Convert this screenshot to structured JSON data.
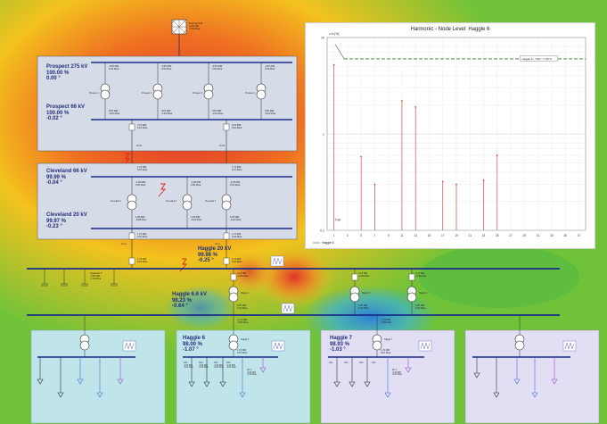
{
  "external_grid": {
    "name": "External Grid",
    "p": "-0.00 MW",
    "q": "-0.00 Mvar"
  },
  "prospect_275": {
    "name": "Prospect 275 kV",
    "v": "100.00 %",
    "angle": "0.00 °"
  },
  "prospect_66": {
    "name": "Prospect 66 kV",
    "v": "100.00 %",
    "angle": "-0.02 °"
  },
  "cleveland_66": {
    "name": "Cleveland 66 kV",
    "v": "99.99 %",
    "angle": "-0.04 °"
  },
  "cleveland_20": {
    "name": "Cleveland 20 kV",
    "v": "99.97 %",
    "angle": "-0.23 °"
  },
  "haggle_20": {
    "name": "Haggle 20 kV",
    "v": "99.98 %",
    "angle": "-0.25 °"
  },
  "haggle_66": {
    "name": "Haggle 6.6 kV",
    "v": "98.23 %",
    "angle": "-0.64 °"
  },
  "haggle_6": {
    "name": "Haggle 6",
    "v": "98.00 %",
    "angle": "-1.07 °"
  },
  "haggle_7": {
    "name": "Haggle 7",
    "v": "98.93 %",
    "angle": "-1.03 °"
  },
  "transformers": {
    "p1": "Prospect 1",
    "p2": "Prospect 2",
    "p3": "Prospect 3",
    "p4": "Prospect 4",
    "c1": "Cleveland 1",
    "c2": "Cleveland 2",
    "c3": "Cleveland 3",
    "h1": "Haggle 1",
    "h2": "Haggle 2",
    "h3": "Haggle 3",
    "h4": "Haggle 4",
    "h6": "Haggle 6",
    "h7": "Haggle 7"
  },
  "flows": {
    "p_top": "-0.87 MW",
    "p_top_q": "0.03 Mvar",
    "p_bot": "0.87 MW",
    "p_bot_q": "-0.10 Mvar",
    "p_out": "3.74 MW",
    "p_out_q": "0.10 Mvar",
    "c_in": "1.74 MW",
    "c_in_q": "0.07 Mvar",
    "c_t1": "-1.28 MW",
    "c_t1_q": "0.00 Mvar",
    "c_t3": "-0.78 MW",
    "c_t3_q": "0.02 Mvar",
    "c_b1": "1.28 MW",
    "c_b1_q": "-0.08 Mvar",
    "c_b2": "1.28 MW",
    "c_b2_q": "-0.03 Mvar",
    "c_b3": "0.78 MW",
    "c_b3_q": "-0.10 Mvar",
    "c_out": "1.74 MW",
    "c_out_q": "0.02 Mvar",
    "h_in": "1.74 MW",
    "h_in_q": "0.02 Mvar",
    "h_t": "0.47 MW",
    "h_t_q": "-0.45 Mvar",
    "h_b": "0.87 MW",
    "h_b_q": "0.44 Mvar",
    "h_b2": "-1.72 MW",
    "h_b2_q": "-0.65 Mvar",
    "cap_a": "Capacitor 3",
    "cap_b": "-0.00 MW",
    "cap_c": "-1.01 Mvar",
    "h6_a": "1.72 MW",
    "h6_b": "0.67 Mvar",
    "h7_a": "1.72 MW",
    "h7_b": "0.67 Mvar"
  },
  "lines": {
    "l1": "Prod1",
    "l2": "Prod2",
    "l3": "Clev1",
    "l4": "Clev2"
  },
  "loads": {
    "h6": [
      "AS1",
      "AS2",
      "AS3",
      "AS4"
    ],
    "h6_vals": [
      "-0.08 MW",
      "-0.08 MW",
      "-0.08 MW",
      "-0.08 MW"
    ],
    "h6_q": [
      "-0.04 Mvar",
      "-0.04 Mvar",
      "-0.04 Mvar",
      "-0.04 Mvar"
    ],
    "h6_dc": "DC 3",
    "h6_dc_v": "-0.06 MW",
    "h6_dc_q": "-0.06 Mvar",
    "h7": [
      "AS1",
      "AS2",
      "AS3",
      "AS4"
    ],
    "h7_dc": "DC 3",
    "h7_dc_v": "-0.06 MW",
    "h7_dc_q": "-0.06 Mvar"
  },
  "colors": {
    "panel": "#d6dbe8",
    "bus": "#1a2c8a",
    "stem": "#d84a4a",
    "limit": "#2f7a2f",
    "bottom_panel": "#bfe4ea",
    "bottom_panel2": "#e2def3"
  },
  "chart_data": {
    "type": "bar",
    "title": "Harmonic - Node Level: Haggle 6",
    "ylabel": "u in [%]",
    "ylim": [
      0.1,
      10
    ],
    "yscale": "log",
    "y_ticks": [
      "10",
      "1",
      "0.1"
    ],
    "x_ticks": [
      "1",
      "3",
      "5",
      "7",
      "9",
      "11",
      "13",
      "15",
      "17",
      "19",
      "21",
      "23",
      "25",
      "27",
      "29",
      "31",
      "33",
      "35",
      "37"
    ],
    "x": [
      1,
      5,
      7,
      11,
      13,
      17,
      19,
      23,
      25
    ],
    "values": [
      5.2,
      0.58,
      0.3,
      2.2,
      1.9,
      0.32,
      0.3,
      0.33,
      0.6
    ],
    "point_label": "THD",
    "limit_series": {
      "name": "Haggle 6 - THD = 7.99 %",
      "value": 6.0
    },
    "legend": "Haggle 6",
    "legend_position": "bottom-left",
    "grid": true
  }
}
